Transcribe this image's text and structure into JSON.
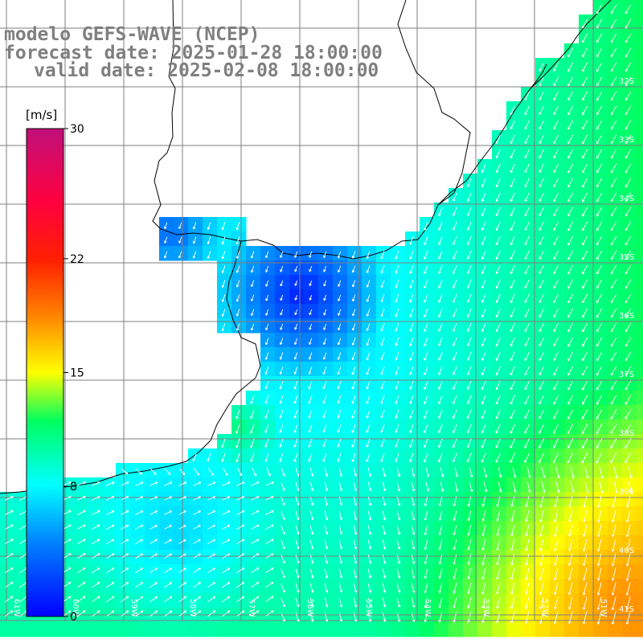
{
  "title": {
    "line1": "modelo GEFS-WAVE (NCEP)",
    "line2": "forecast date: 2025-01-28 18:00:00",
    "line3": "valid date: 2025-02-08 18:00:00"
  },
  "colorbar": {
    "unit": "[m/s]",
    "ticks": [
      {
        "value": 30,
        "label": "30"
      },
      {
        "value": 22,
        "label": "22"
      },
      {
        "value": 15,
        "label": "15"
      },
      {
        "value": 8,
        "label": "8"
      },
      {
        "value": 0,
        "label": "0"
      }
    ],
    "min": 0,
    "max": 30
  },
  "lat_labels": [
    "32S",
    "33S",
    "34S",
    "35S",
    "36S",
    "37S",
    "38S",
    "39S",
    "40S",
    "41S"
  ],
  "lon_labels": [
    "61W",
    "60W",
    "59W",
    "58W",
    "57W",
    "56W",
    "55W",
    "54W",
    "53W",
    "52W",
    "51W"
  ],
  "colors": {
    "land": "#ffffff",
    "grid": "#7f7f7f",
    "coast": "#000000",
    "arrow": "#ffffff",
    "title": "#7f7f7f"
  }
}
